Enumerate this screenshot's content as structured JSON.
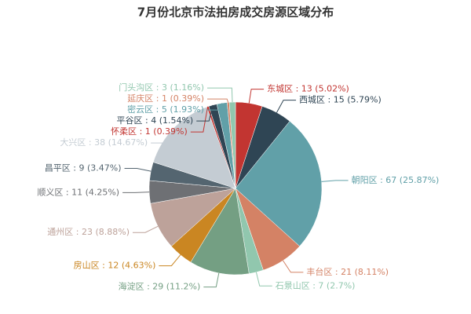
{
  "chart_data": {
    "type": "pie",
    "title": "7月份北京市法拍房成交房源区域分布",
    "values": [
      13,
      15,
      67,
      21,
      7,
      29,
      12,
      23,
      11,
      9,
      38,
      1,
      4,
      5,
      1,
      3
    ],
    "value_labels": [
      "东城区 : 13 (5.02%)",
      "西城区 : 15 (5.79%)",
      "朝阳区 : 67 (25.87%)",
      "丰台区 : 21 (8.11%)",
      "石景山区 : 7 (2.7%)",
      "海淀区 : 29 (11.2%)",
      "房山区 : 12 (4.63%)",
      "通州区 : 23 (8.88%)",
      "顺义区 : 11 (4.25%)",
      "昌平区 : 9 (3.47%)",
      "大兴区 : 38 (14.67%)",
      "怀柔区 : 1 (0.39%)",
      "平谷区 : 4 (1.54%)",
      "密云区 : 5 (1.93%)",
      "延庆区 : 1 (0.39%)",
      "门头沟区 : 3 (1.16%)"
    ],
    "colors": [
      "#c23531",
      "#2f4554",
      "#61a0a8",
      "#d48265",
      "#91c7ae",
      "#749f83",
      "#ca8622",
      "#bda29a",
      "#6e7074",
      "#546570",
      "#c4ccd3",
      "#c23531",
      "#2f4554",
      "#61a0a8",
      "#d48265",
      "#91c7ae"
    ]
  }
}
